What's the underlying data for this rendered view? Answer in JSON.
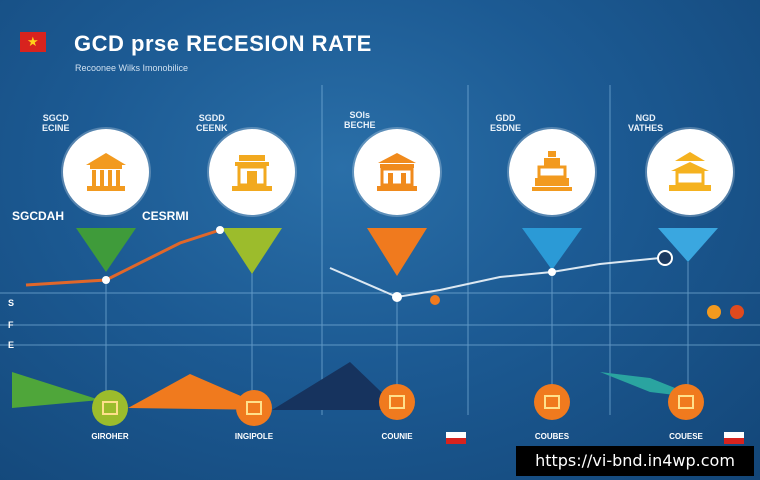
{
  "header": {
    "flag_star": "★",
    "title": "GCD prse RECESION RATE",
    "subtitle": "Recoonee Wilks Imonobilice"
  },
  "country_labels": [
    "SGCD",
    "SGDD",
    "SOls",
    "GDD",
    "NGD"
  ],
  "country_sublabels": [
    "ECINE",
    "CEENK",
    "BECHE",
    "ESDNE",
    "VATHES"
  ],
  "left_labels": [
    "SGCDAH",
    "CESRMI"
  ],
  "axis_labels": [
    "S",
    "F",
    "E"
  ],
  "bottom_labels": [
    "GIROHER",
    "INGIPOLE",
    "COUNIE",
    "COUBES",
    "COUESE"
  ],
  "watermark_url": "https://vi-bnd.in4wp.com",
  "colors": {
    "green": "#3f9b3a",
    "yellow_green": "#9cbc2c",
    "orange": "#f07a1e",
    "blue": "#2b9ad6",
    "light_blue": "#3aa7e0",
    "navy": "#16335e",
    "icon_orange": "#f29a1f"
  },
  "icons": [
    "temple-icon",
    "pavilion-icon",
    "gate-icon",
    "tower-icon",
    "pagoda-icon"
  ]
}
